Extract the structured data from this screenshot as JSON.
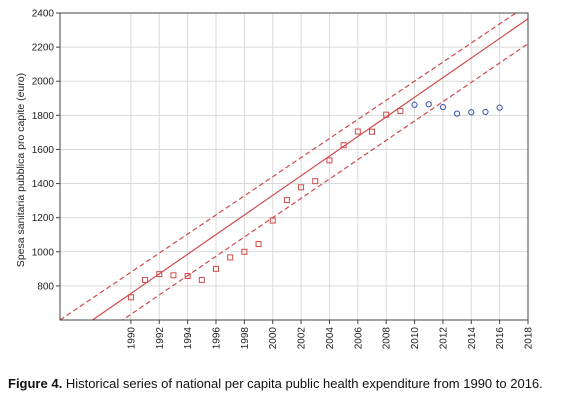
{
  "chart_data": {
    "type": "scatter",
    "xlim": [
      1985,
      2018
    ],
    "ylim": [
      600,
      2400
    ],
    "x_ticks": [
      1990,
      1992,
      1994,
      1996,
      1998,
      2000,
      2002,
      2004,
      2006,
      2008,
      2010,
      2012,
      2014,
      2016,
      2018
    ],
    "y_ticks": [
      800,
      1000,
      1200,
      1400,
      1600,
      1800,
      2000,
      2200,
      2400
    ],
    "ylabel": "Spesa sanitaria pubblica pro capite (euro)",
    "grid": true,
    "series": [
      {
        "marker": "square",
        "color": "#d04a4a",
        "x": [
          1990,
          1991,
          1992,
          1993,
          1994,
          1995,
          1996,
          1997,
          1998,
          1999,
          2000,
          2001,
          2002,
          2003,
          2004,
          2005,
          2006,
          2007,
          2008,
          2009
        ],
        "y": [
          733,
          835,
          869,
          862,
          858,
          835,
          900,
          967,
          1000,
          1045,
          1183,
          1303,
          1378,
          1414,
          1536,
          1625,
          1705,
          1704,
          1804,
          1825
        ]
      },
      {
        "marker": "circle",
        "color": "#3a4fb5",
        "x": [
          2010,
          2011,
          2012,
          2013,
          2014,
          2015,
          2016
        ],
        "y": [
          1862,
          1865,
          1848,
          1810,
          1818,
          1820,
          1845
        ]
      }
    ],
    "fit": {
      "color": "#d04a4a",
      "line": [
        [
          1985,
          468
        ],
        [
          2018,
          2366
        ]
      ],
      "upper": [
        [
          1985,
          600
        ],
        [
          2018,
          2448
        ]
      ],
      "lower": [
        [
          1985,
          350
        ],
        [
          2018,
          2220
        ]
      ]
    }
  },
  "caption": {
    "label": "Figure 4.",
    "text": "Historical series of national per capita public health expenditure from 1990 to 2016."
  }
}
